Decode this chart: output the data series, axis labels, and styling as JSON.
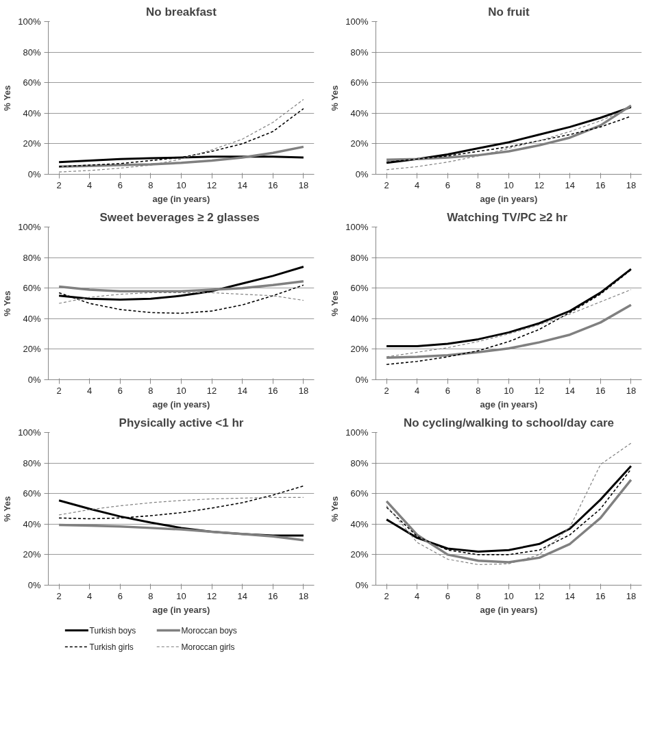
{
  "chart_data": [
    {
      "type": "line",
      "title": "No breakfast",
      "xlabel": "age (in years)",
      "ylabel": "% Yes",
      "x": [
        2,
        4,
        6,
        8,
        10,
        12,
        14,
        16,
        18
      ],
      "xlim": [
        1.3,
        18.7
      ],
      "xticks": [
        2,
        4,
        6,
        8,
        10,
        12,
        14,
        16,
        18
      ],
      "ylim": [
        0,
        100
      ],
      "yticks": [
        {
          "value": 0,
          "label": "0%"
        },
        {
          "value": 20,
          "label": "20%"
        },
        {
          "value": 40,
          "label": "40%"
        },
        {
          "value": 60,
          "label": "60%"
        },
        {
          "value": 80,
          "label": "80%"
        },
        {
          "value": 100,
          "label": "100%"
        }
      ],
      "grid": "y",
      "series": [
        {
          "color": "#000000",
          "line_style": "solid",
          "values": [
            8,
            9,
            10,
            10.5,
            11,
            11.5,
            11.5,
            11.5,
            11
          ]
        },
        {
          "color": "#808080",
          "line_style": "solid",
          "values": [
            5,
            5.5,
            6,
            6.5,
            7.5,
            9,
            11,
            14,
            18
          ]
        },
        {
          "color": "#000000",
          "line_style": "dashed",
          "values": [
            5,
            6,
            7,
            9,
            11,
            15,
            20,
            28,
            43
          ]
        },
        {
          "color": "#808080",
          "line_style": "dashed",
          "values": [
            1.5,
            2.5,
            4,
            6,
            10,
            16,
            23,
            34,
            49
          ]
        }
      ]
    },
    {
      "type": "line",
      "title": "No fruit",
      "xlabel": "age (in years)",
      "ylabel": "% Yes",
      "x": [
        2,
        4,
        6,
        8,
        10,
        12,
        14,
        16,
        18
      ],
      "xlim": [
        1.3,
        18.7
      ],
      "xticks": [
        2,
        4,
        6,
        8,
        10,
        12,
        14,
        16,
        18
      ],
      "ylim": [
        0,
        100
      ],
      "yticks": [
        {
          "value": 0,
          "label": "0%"
        },
        {
          "value": 20,
          "label": "20%"
        },
        {
          "value": 40,
          "label": "40%"
        },
        {
          "value": 60,
          "label": "60%"
        },
        {
          "value": 80,
          "label": "80%"
        },
        {
          "value": 100,
          "label": "100%"
        }
      ],
      "grid": "y",
      "series": [
        {
          "color": "#000000",
          "line_style": "solid",
          "values": [
            7.5,
            10,
            13,
            17,
            21,
            26,
            31,
            37,
            44
          ]
        },
        {
          "color": "#808080",
          "line_style": "solid",
          "values": [
            9.5,
            10,
            11,
            12.5,
            15,
            19,
            24,
            32,
            45
          ]
        },
        {
          "color": "#000000",
          "line_style": "dashed",
          "values": [
            8,
            10,
            12,
            15,
            18,
            22,
            26,
            31,
            38
          ]
        },
        {
          "color": "#808080",
          "line_style": "dashed",
          "values": [
            3,
            5,
            8,
            12,
            17,
            22,
            28,
            35,
            44
          ]
        }
      ]
    },
    {
      "type": "line",
      "title": "Sweet beverages  ≥ 2 glasses",
      "xlabel": "age (in years)",
      "ylabel": "% Yes",
      "x": [
        2,
        4,
        6,
        8,
        10,
        12,
        14,
        16,
        18
      ],
      "xlim": [
        1.3,
        18.7
      ],
      "xticks": [
        2,
        4,
        6,
        8,
        10,
        12,
        14,
        16,
        18
      ],
      "ylim": [
        0,
        100
      ],
      "yticks": [
        {
          "value": 0,
          "label": "0%"
        },
        {
          "value": 20,
          "label": "20%"
        },
        {
          "value": 40,
          "label": "40%"
        },
        {
          "value": 60,
          "label": "60%"
        },
        {
          "value": 80,
          "label": "80%"
        },
        {
          "value": 100,
          "label": "100%"
        }
      ],
      "grid": "y",
      "series": [
        {
          "color": "#000000",
          "line_style": "solid",
          "values": [
            55,
            53,
            52.5,
            53,
            55,
            58,
            63,
            68,
            74
          ]
        },
        {
          "color": "#808080",
          "line_style": "solid",
          "values": [
            61,
            59,
            58,
            58,
            58,
            59,
            60,
            62,
            64.5
          ]
        },
        {
          "color": "#000000",
          "line_style": "dashed",
          "values": [
            57,
            50,
            46,
            44,
            43.5,
            45,
            49,
            55,
            62
          ]
        },
        {
          "color": "#808080",
          "line_style": "dashed",
          "values": [
            50,
            54,
            56,
            57,
            57,
            57,
            56,
            55,
            52
          ]
        }
      ]
    },
    {
      "type": "line",
      "title": "Watching TV/PC  ≥2 hr",
      "xlabel": "age (in years)",
      "ylabel": "% Yes",
      "x": [
        2,
        4,
        6,
        8,
        10,
        12,
        14,
        16,
        18
      ],
      "xlim": [
        1.3,
        18.7
      ],
      "xticks": [
        2,
        4,
        6,
        8,
        10,
        12,
        14,
        16,
        18
      ],
      "ylim": [
        0,
        100
      ],
      "yticks": [
        {
          "value": 0,
          "label": "0%"
        },
        {
          "value": 20,
          "label": "20%"
        },
        {
          "value": 40,
          "label": "40%"
        },
        {
          "value": 60,
          "label": "60%"
        },
        {
          "value": 80,
          "label": "80%"
        },
        {
          "value": 100,
          "label": "100%"
        }
      ],
      "grid": "y",
      "series": [
        {
          "color": "#000000",
          "line_style": "solid",
          "values": [
            22,
            22,
            23.5,
            26.5,
            31,
            37,
            45,
            57,
            72.5
          ]
        },
        {
          "color": "#808080",
          "line_style": "solid",
          "values": [
            14.5,
            15,
            16,
            18,
            20.5,
            24.5,
            29.5,
            37.5,
            49
          ]
        },
        {
          "color": "#000000",
          "line_style": "dashed",
          "values": [
            10,
            12,
            15,
            19,
            25,
            33,
            44,
            56,
            72
          ]
        },
        {
          "color": "#808080",
          "line_style": "dashed",
          "values": [
            15,
            18,
            21,
            25,
            30,
            36,
            43,
            51,
            59
          ]
        }
      ]
    },
    {
      "type": "line",
      "title": "Physically active <1 hr",
      "xlabel": "age (in years)",
      "ylabel": "% Yes",
      "x": [
        2,
        4,
        6,
        8,
        10,
        12,
        14,
        16,
        18
      ],
      "xlim": [
        1.3,
        18.7
      ],
      "xticks": [
        2,
        4,
        6,
        8,
        10,
        12,
        14,
        16,
        18
      ],
      "ylim": [
        0,
        100
      ],
      "yticks": [
        {
          "value": 0,
          "label": "0%"
        },
        {
          "value": 20,
          "label": "20%"
        },
        {
          "value": 40,
          "label": "40%"
        },
        {
          "value": 60,
          "label": "60%"
        },
        {
          "value": 80,
          "label": "80%"
        },
        {
          "value": 100,
          "label": "100%"
        }
      ],
      "grid": "y",
      "legend": "bottom",
      "series": [
        {
          "name": "Turkish boys",
          "color": "#000000",
          "line_style": "solid",
          "values": [
            55.5,
            50,
            45,
            41,
            37.5,
            35,
            33.5,
            32.5,
            32.5
          ]
        },
        {
          "name": "Moroccan boys",
          "color": "#808080",
          "line_style": "solid",
          "values": [
            39.5,
            39,
            38.5,
            37.5,
            36.5,
            35,
            33.5,
            32,
            29.5
          ]
        },
        {
          "name": "Turkish girls",
          "color": "#000000",
          "line_style": "dashed",
          "values": [
            44,
            43.5,
            44,
            45.5,
            47.5,
            50.5,
            54,
            59,
            65
          ]
        },
        {
          "name": "Moroccan girls",
          "color": "#808080",
          "line_style": "dashed",
          "values": [
            46,
            49.5,
            52,
            54,
            55.5,
            56.5,
            57,
            57.5,
            57.5
          ]
        }
      ]
    },
    {
      "type": "line",
      "title": "No cycling/walking to school/day care",
      "xlabel": "age (in years)",
      "ylabel": "% Yes",
      "x": [
        2,
        4,
        6,
        8,
        10,
        12,
        14,
        16,
        18
      ],
      "xlim": [
        1.3,
        18.7
      ],
      "xticks": [
        2,
        4,
        6,
        8,
        10,
        12,
        14,
        16,
        18
      ],
      "ylim": [
        0,
        100
      ],
      "yticks": [
        {
          "value": 0,
          "label": "0%"
        },
        {
          "value": 20,
          "label": "20%"
        },
        {
          "value": 40,
          "label": "40%"
        },
        {
          "value": 60,
          "label": "60%"
        },
        {
          "value": 80,
          "label": "80%"
        },
        {
          "value": 100,
          "label": "100%"
        }
      ],
      "grid": "y",
      "series": [
        {
          "color": "#000000",
          "line_style": "solid",
          "values": [
            43,
            31,
            24,
            22,
            23,
            27,
            37,
            56,
            78
          ]
        },
        {
          "color": "#808080",
          "line_style": "solid",
          "values": [
            55,
            33,
            20,
            16,
            15,
            18,
            27,
            44,
            69
          ]
        },
        {
          "color": "#000000",
          "line_style": "dashed",
          "values": [
            51,
            32,
            23,
            20,
            20,
            23,
            33,
            50,
            76
          ]
        },
        {
          "color": "#808080",
          "line_style": "dashed",
          "values": [
            52,
            28,
            17,
            13.5,
            14,
            20,
            38,
            79,
            93
          ]
        }
      ]
    }
  ]
}
